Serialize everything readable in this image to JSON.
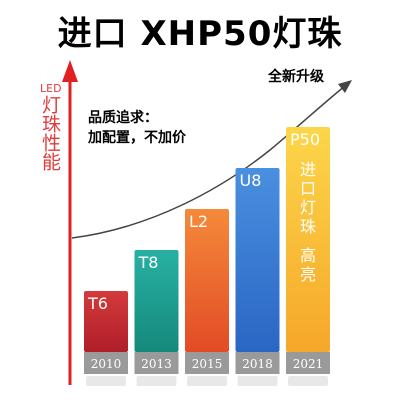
{
  "header": {
    "title": "进口 XHP50灯珠"
  },
  "annotations": {
    "upgrade": "全新升级",
    "quality_line1": "品质追求：",
    "quality_line2": "加配置，不加价"
  },
  "chart_data": {
    "type": "bar",
    "title": "进口 XHP50灯珠",
    "ylabel_latin": "LED",
    "ylabel": "灯珠性能",
    "categories": [
      "2010",
      "2013",
      "2015",
      "2018",
      "2021"
    ],
    "series": [
      {
        "labels": [
          "T6",
          "T8",
          "L2",
          "U8",
          "P50"
        ],
        "values": [
          1,
          2,
          3,
          4,
          5
        ]
      }
    ],
    "highlight_text": "进口灯珠 高亮",
    "colors": {
      "T6": [
        "#d33a3a",
        "#b01e2a"
      ],
      "T8": [
        "#27b1a2",
        "#15897c"
      ],
      "L2": [
        "#f58a3a",
        "#e24b26"
      ],
      "U8": [
        "#4a8fe0",
        "#2a66c4"
      ],
      "P50": [
        "#fcd64a",
        "#f6a72a"
      ],
      "axis": "#e02020"
    }
  }
}
